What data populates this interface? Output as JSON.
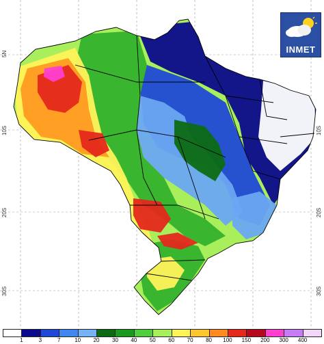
{
  "logo": {
    "text": "INMET"
  },
  "grid": {
    "lat_labels": [
      "5N",
      "10S",
      "20S",
      "30S"
    ]
  },
  "legend": {
    "ticks": [
      "1",
      "3",
      "7",
      "10",
      "20",
      "30",
      "40",
      "50",
      "60",
      "70",
      "80",
      "100",
      "150",
      "200",
      "300",
      "400"
    ],
    "colors": [
      "#ffffff",
      "#0a0a8c",
      "#1f48d6",
      "#3f86ee",
      "#76b3f5",
      "#0c6b12",
      "#1a9a1f",
      "#4fcf3b",
      "#a9ee5b",
      "#fff35a",
      "#ffc72f",
      "#ff8a1f",
      "#e4281c",
      "#b8081d",
      "#ff3fd0",
      "#c77cf3",
      "#f3d7f9"
    ]
  },
  "map_colors": {
    "dry": "#ffffff",
    "very_wet": "#0a0a8c",
    "wet": "#1f48d6",
    "light_blue": "#6aa6f2",
    "green_dark": "#0c6b12",
    "green": "#34b12d",
    "yellow_green": "#a9ee5b",
    "yellow": "#fff35a",
    "orange": "#ff9a22",
    "red": "#e4281c",
    "magenta": "#ff3fd0"
  }
}
